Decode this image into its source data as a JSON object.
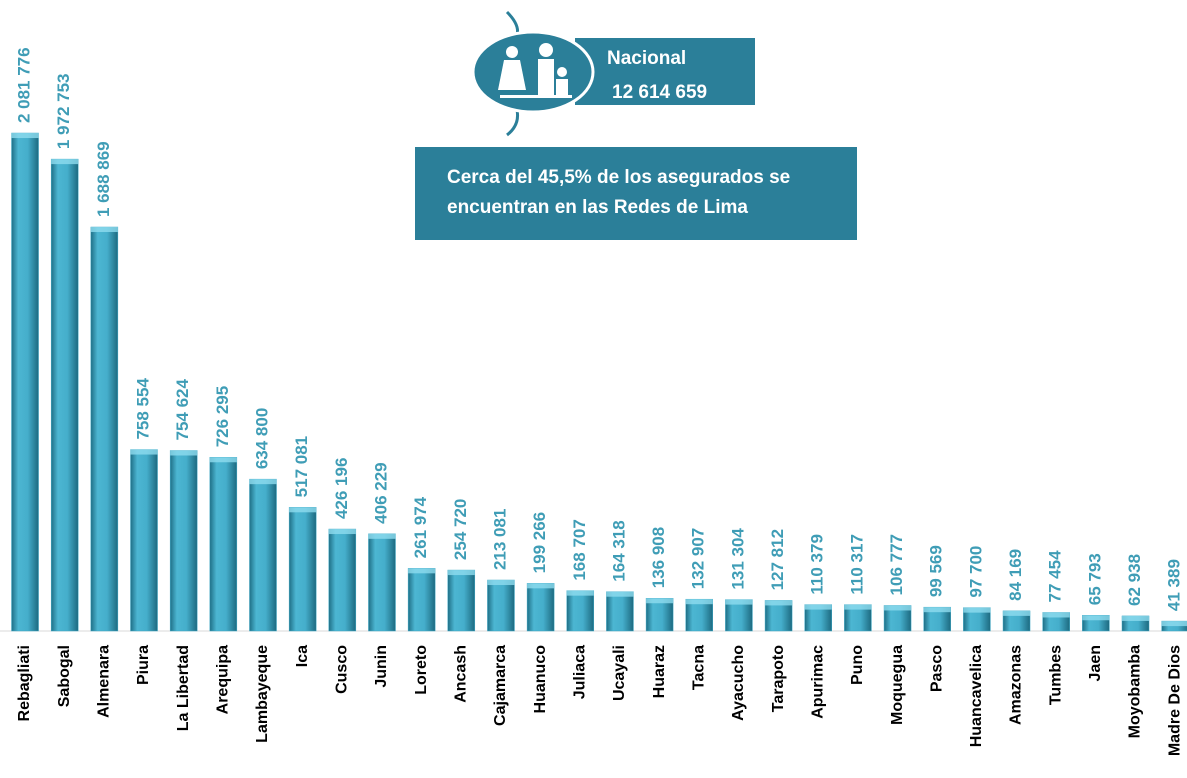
{
  "chart_data": {
    "type": "bar",
    "categories": [
      "Rebagliati",
      "Sabogal",
      "Almenara",
      "Piura",
      "La Libertad",
      "Arequipa",
      "Lambayeque",
      "Ica",
      "Cusco",
      "Junin",
      "Loreto",
      "Ancash",
      "Cajamarca",
      "Huanuco",
      "Juliaca",
      "Ucayali",
      "Huaraz",
      "Tacna",
      "Ayacucho",
      "Tarapoto",
      "Apurimac",
      "Puno",
      "Moquegua",
      "Pasco",
      "Huancavelica",
      "Amazonas",
      "Tumbes",
      "Jaen",
      "Moyobamba",
      "Madre De Dios"
    ],
    "values": [
      2081776,
      1972753,
      1688869,
      758554,
      754624,
      726295,
      634800,
      517081,
      426196,
      406229,
      261974,
      254720,
      213081,
      199266,
      168707,
      164318,
      136908,
      132907,
      131304,
      127812,
      110379,
      110317,
      106777,
      99569,
      97700,
      84169,
      77454,
      65793,
      62938,
      41389
    ],
    "value_labels": [
      "2 081 776",
      "1 972 753",
      "1 688 869",
      "758 554",
      "754 624",
      "726 295",
      "634 800",
      "517 081",
      "426 196",
      "406 229",
      "261 974",
      "254 720",
      "213 081",
      "199 266",
      "168 707",
      "164 318",
      "136 908",
      "132 907",
      "131 304",
      "127 812",
      "110 379",
      "110 317",
      "106 777",
      "99 569",
      "97 700",
      "84 169",
      "77 454",
      "65 793",
      "62 938",
      "41 389"
    ],
    "color": "#3fa9c6",
    "ylim": [
      0,
      2500000
    ],
    "national_label": "Nacional",
    "national_value": "12 614 659",
    "annotation": [
      "Cerca del 45,5% de los asegurados se",
      "encuentran en las Redes de Lima"
    ]
  }
}
